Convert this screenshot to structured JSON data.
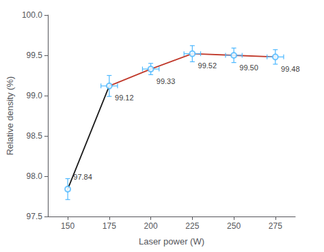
{
  "chart_data": {
    "type": "line",
    "xlabel": "Laser power (W)",
    "ylabel": "Relative density (%)",
    "x": [
      150,
      175,
      200,
      225,
      250,
      275
    ],
    "values": [
      97.84,
      99.12,
      99.33,
      99.52,
      99.5,
      99.48
    ],
    "value_labels": [
      "97.84",
      "99.12",
      "99.33",
      "99.52",
      "99.50",
      "99.48"
    ],
    "yerr": [
      0.13,
      0.13,
      0.07,
      0.1,
      0.09,
      0.09
    ],
    "xerr": [
      0,
      5,
      5,
      5,
      5,
      5
    ],
    "colors": [
      "#1a1a1a",
      "#c0392b",
      "#c0392b",
      "#c0392b",
      "#c0392b"
    ],
    "color": "#4db8ff",
    "marker": "emptyCircle",
    "data_labels": true,
    "grid": false,
    "xlim": [
      138,
      287
    ],
    "ylim": [
      97.5,
      100.0
    ],
    "xticks": [
      150,
      175,
      200,
      225,
      250,
      275
    ],
    "yticks": [
      97.5,
      {
        "value": 98.0,
        "label": "98.0"
      },
      98.5,
      {
        "value": 99.0,
        "label": "99.0"
      },
      99.5,
      {
        "value": 100.0,
        "label": "100.0"
      }
    ]
  }
}
